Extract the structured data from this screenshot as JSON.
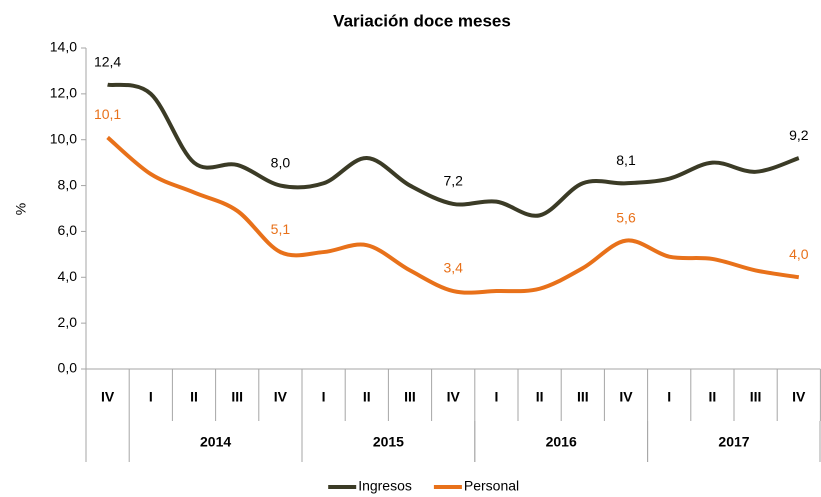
{
  "chart_data": {
    "type": "line",
    "title": "Variación doce meses",
    "ylabel": "%",
    "categories": [
      "IV",
      "I",
      "II",
      "III",
      "IV",
      "I",
      "II",
      "III",
      "IV",
      "I",
      "II",
      "III",
      "IV",
      "I",
      "II",
      "III",
      "IV"
    ],
    "year_groups": [
      {
        "label": "2014",
        "start": 1,
        "end": 4
      },
      {
        "label": "2015",
        "start": 5,
        "end": 8
      },
      {
        "label": "2016",
        "start": 9,
        "end": 12
      },
      {
        "label": "2017",
        "start": 13,
        "end": 16
      }
    ],
    "series": [
      {
        "name": "Ingresos",
        "color": "#3b3b26",
        "values": [
          12.4,
          12.0,
          9.0,
          8.9,
          8.0,
          8.1,
          9.2,
          8.0,
          7.2,
          7.3,
          6.7,
          8.1,
          8.1,
          8.3,
          9.0,
          8.6,
          9.2
        ],
        "value_labels": [
          "12,4",
          null,
          null,
          null,
          "8,0",
          null,
          null,
          null,
          "7,2",
          null,
          null,
          null,
          "8,1",
          null,
          null,
          null,
          "9,2"
        ]
      },
      {
        "name": "Personal",
        "color": "#e8711a",
        "values": [
          10.1,
          8.5,
          7.7,
          6.9,
          5.1,
          5.1,
          5.4,
          4.3,
          3.4,
          3.4,
          3.5,
          4.4,
          5.6,
          4.9,
          4.8,
          4.3,
          4.0
        ],
        "value_labels": [
          "10,1",
          null,
          null,
          null,
          "5,1",
          null,
          null,
          null,
          "3,4",
          null,
          null,
          null,
          "5,6",
          null,
          null,
          null,
          "4,0"
        ]
      }
    ],
    "ylim": [
      0,
      14
    ],
    "yticks": [
      {
        "value": 0,
        "label": "0,0"
      },
      {
        "value": 2,
        "label": "2,0"
      },
      {
        "value": 4,
        "label": "4,0"
      },
      {
        "value": 6,
        "label": "6,0"
      },
      {
        "value": 8,
        "label": "8,0"
      },
      {
        "value": 10,
        "label": "10,0"
      },
      {
        "value": 12,
        "label": "12,0"
      },
      {
        "value": 14,
        "label": "14,0"
      }
    ],
    "grid": false,
    "legend": "bottom"
  }
}
